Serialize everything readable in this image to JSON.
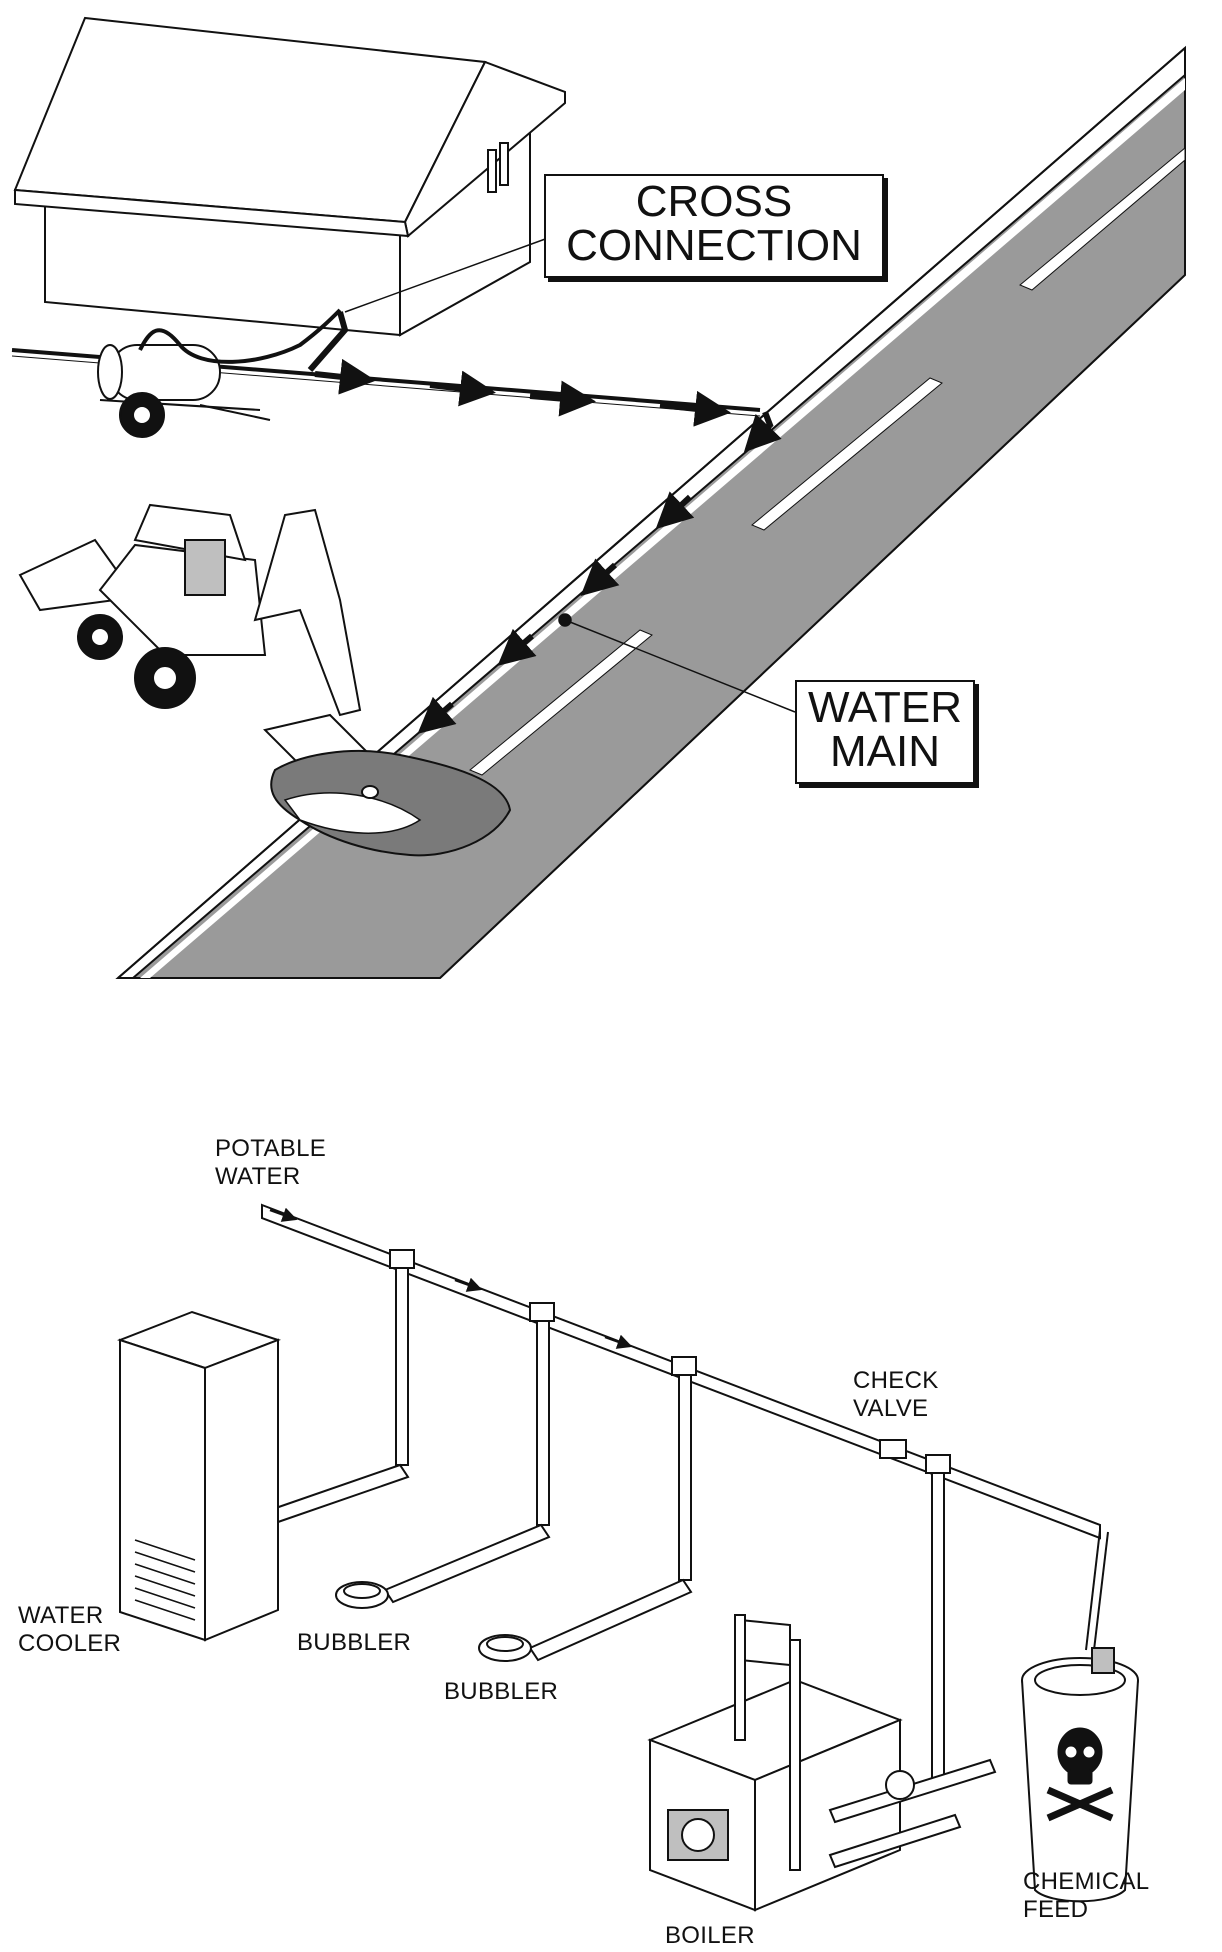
{
  "top_illustration": {
    "callouts": {
      "cross_connection": {
        "line1": "CROSS",
        "line2": "CONNECTION"
      },
      "water_main": {
        "line1": "WATER",
        "line2": "MAIN"
      }
    }
  },
  "bottom_illustration": {
    "labels": {
      "potable_water": {
        "line1": "POTABLE",
        "line2": "WATER"
      },
      "check_valve": {
        "line1": "CHECK",
        "line2": "VALVE"
      },
      "water_cooler": {
        "line1": "WATER",
        "line2": "COOLER"
      },
      "bubbler_1": "BUBBLER",
      "bubbler_2": "BUBBLER",
      "chemical_feed": {
        "line1": "CHEMICAL",
        "line2": "FEED"
      },
      "boiler": "BOILER"
    },
    "icons": {
      "hazard": "skull-crossbones-icon"
    }
  },
  "colors": {
    "ink": "#111111",
    "road": "#9a9a9a",
    "puddle": "#7a7a7a",
    "paper": "#ffffff"
  }
}
